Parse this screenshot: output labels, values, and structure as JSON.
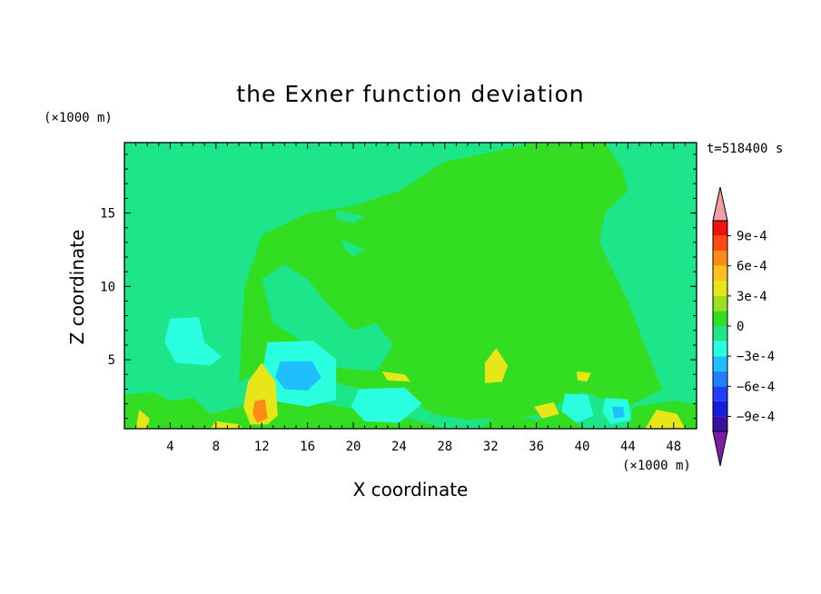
{
  "chart_data": {
    "type": "heatmap",
    "title": "the Exner function deviation",
    "xlabel": "X coordinate",
    "ylabel": "Z coordinate",
    "x_unit": "(×1000 m)",
    "y_unit": "(×1000 m)",
    "time_label": "t=518400 s",
    "xlim": [
      0,
      50
    ],
    "ylim": [
      0.3,
      19.8
    ],
    "x_ticks": [
      4,
      8,
      12,
      16,
      20,
      24,
      28,
      32,
      36,
      40,
      44,
      48
    ],
    "y_ticks": [
      5,
      10,
      15
    ],
    "colorbar": {
      "levels": [
        -0.001,
        -0.0009,
        -0.00075,
        -0.0006,
        -0.00045,
        -0.0003,
        -0.00015,
        0,
        0.00015,
        0.0003,
        0.00045,
        0.0006,
        0.00075,
        0.0009,
        0.001
      ],
      "colors": [
        "#7a1fa2",
        "#3b0fa0",
        "#1a1adf",
        "#1f3fff",
        "#1f7fff",
        "#1fbfff",
        "#2affe0",
        "#1de58a",
        "#33dd22",
        "#9be01e",
        "#e6e619",
        "#ffc21a",
        "#ff8a1a",
        "#ff4a14",
        "#ee1111",
        "#f0a0a0"
      ],
      "tick_values": [
        0.0009,
        0.0006,
        0.0003,
        0,
        -0.0003,
        -0.0006,
        -0.0009
      ],
      "tick_labels": [
        "9e-4",
        "6e-4",
        "3e-4",
        "0",
        "−3e-4",
        "−6e-4",
        "−9e-4"
      ]
    },
    "background_value": -0.0001,
    "regions": [
      {
        "value": 0.0001,
        "polygon": [
          [
            10,
            3.5
          ],
          [
            10.5,
            10
          ],
          [
            12,
            13.5
          ],
          [
            16,
            15
          ],
          [
            20,
            15.5
          ],
          [
            24,
            16.5
          ],
          [
            28,
            18.5
          ],
          [
            36,
            19.8
          ],
          [
            42,
            19.8
          ],
          [
            43.5,
            18
          ],
          [
            44,
            16.5
          ],
          [
            42,
            15
          ],
          [
            41.5,
            13
          ],
          [
            44,
            9
          ],
          [
            47,
            3
          ],
          [
            44,
            1.8
          ],
          [
            40,
            2.8
          ],
          [
            36,
            1.2
          ],
          [
            30,
            0.9
          ],
          [
            27,
            1.3
          ],
          [
            25,
            2.2
          ],
          [
            22,
            2.8
          ],
          [
            19,
            3.3
          ],
          [
            16,
            4.5
          ],
          [
            12.5,
            4.5
          ]
        ]
      },
      {
        "value": 0.0001,
        "polygon": [
          [
            0,
            0.3
          ],
          [
            0,
            2.6
          ],
          [
            2.5,
            2.8
          ],
          [
            4,
            2.2
          ],
          [
            6,
            2.4
          ],
          [
            7.5,
            1.3
          ],
          [
            10,
            1.8
          ],
          [
            12,
            2.8
          ],
          [
            15,
            2.4
          ],
          [
            19,
            1.8
          ],
          [
            22,
            1.3
          ],
          [
            25,
            1.0
          ],
          [
            28,
            0.3
          ]
        ]
      },
      {
        "value": 0.0001,
        "polygon": [
          [
            31,
            0.3
          ],
          [
            33,
            1.4
          ],
          [
            36,
            0.9
          ],
          [
            38.5,
            1.8
          ],
          [
            40,
            0.3
          ]
        ]
      },
      {
        "value": 0.0001,
        "polygon": [
          [
            44,
            0.3
          ],
          [
            44.5,
            1.8
          ],
          [
            48,
            2.2
          ],
          [
            50,
            2.0
          ],
          [
            50,
            0.3
          ]
        ]
      },
      {
        "value": -0.0001,
        "polygon": [
          [
            12,
            10.5
          ],
          [
            14,
            11.5
          ],
          [
            16,
            10.5
          ],
          [
            17.5,
            9
          ],
          [
            20,
            7
          ],
          [
            22,
            7.5
          ],
          [
            23.5,
            6
          ],
          [
            22,
            4.2
          ],
          [
            18,
            4.5
          ],
          [
            16,
            6
          ],
          [
            13,
            7.5
          ]
        ]
      },
      {
        "value": -0.0001,
        "polygon": [
          [
            18.5,
            15.2
          ],
          [
            21,
            14.8
          ],
          [
            20,
            14.3
          ],
          [
            18.5,
            14.6
          ]
        ]
      },
      {
        "value": -0.0001,
        "polygon": [
          [
            19,
            13.2
          ],
          [
            21,
            12.5
          ],
          [
            20,
            12
          ],
          [
            19.2,
            12.6
          ]
        ]
      },
      {
        "value": -0.0003,
        "polygon": [
          [
            4,
            7.8
          ],
          [
            6.5,
            7.9
          ],
          [
            7,
            6.2
          ],
          [
            8.5,
            5.2
          ],
          [
            7.5,
            4.6
          ],
          [
            4.5,
            4.8
          ],
          [
            3.5,
            6.2
          ]
        ]
      },
      {
        "value": -0.0002,
        "polygon": [
          [
            12.5,
            6.2
          ],
          [
            16.5,
            6.3
          ],
          [
            18.5,
            5
          ],
          [
            18.5,
            2.3
          ],
          [
            16,
            1.8
          ],
          [
            13,
            2.2
          ],
          [
            12,
            4
          ]
        ]
      },
      {
        "value": -0.00045,
        "polygon": [
          [
            13.6,
            4.9
          ],
          [
            16.4,
            4.9
          ],
          [
            17.2,
            3.8
          ],
          [
            16,
            2.9
          ],
          [
            14,
            3.0
          ],
          [
            13.2,
            3.8
          ]
        ]
      },
      {
        "value": -0.0002,
        "polygon": [
          [
            20.5,
            3
          ],
          [
            24.5,
            3.1
          ],
          [
            26,
            2
          ],
          [
            24,
            0.7
          ],
          [
            21,
            0.8
          ],
          [
            19.8,
            1.8
          ]
        ]
      },
      {
        "value": -0.0003,
        "polygon": [
          [
            38.5,
            2.7
          ],
          [
            40.5,
            2.6
          ],
          [
            41,
            1.2
          ],
          [
            39.5,
            0.7
          ],
          [
            38.2,
            1.5
          ]
        ]
      },
      {
        "value": -0.0003,
        "polygon": [
          [
            42,
            2.4
          ],
          [
            44,
            2.3
          ],
          [
            44.3,
            0.9
          ],
          [
            42.5,
            0.6
          ],
          [
            41.8,
            1.4
          ]
        ]
      },
      {
        "value": -0.0004,
        "polygon": [
          [
            42.6,
            1.8
          ],
          [
            43.6,
            1.8
          ],
          [
            43.7,
            1.1
          ],
          [
            42.8,
            1.0
          ]
        ]
      },
      {
        "value": 0.0004,
        "polygon": [
          [
            10.8,
            3.5
          ],
          [
            12,
            4.8
          ],
          [
            13.2,
            3.5
          ],
          [
            13.4,
            1.2
          ],
          [
            12.5,
            0.6
          ],
          [
            11,
            0.6
          ],
          [
            10.4,
            1.8
          ]
        ]
      },
      {
        "value": 0.0006,
        "polygon": [
          [
            11.4,
            2.2
          ],
          [
            12.3,
            2.3
          ],
          [
            12.5,
            1.0
          ],
          [
            11.6,
            0.7
          ],
          [
            11.2,
            1.3
          ]
        ]
      },
      {
        "value": 0.0003,
        "polygon": [
          [
            1,
            0.3
          ],
          [
            1.3,
            1.6
          ],
          [
            2.2,
            1.0
          ],
          [
            2.0,
            0.3
          ]
        ]
      },
      {
        "value": 0.0003,
        "polygon": [
          [
            7.5,
            0.3
          ],
          [
            8,
            0.8
          ],
          [
            10,
            0.6
          ],
          [
            10.3,
            0.3
          ]
        ]
      },
      {
        "value": 0.0003,
        "polygon": [
          [
            31.5,
            4.8
          ],
          [
            32.5,
            5.8
          ],
          [
            33.5,
            4.6
          ],
          [
            33,
            3.5
          ],
          [
            31.5,
            3.4
          ]
        ]
      },
      {
        "value": 0.0003,
        "polygon": [
          [
            45.5,
            0.3
          ],
          [
            46.5,
            1.6
          ],
          [
            48.3,
            1.3
          ],
          [
            49,
            0.3
          ]
        ]
      },
      {
        "value": 0.0003,
        "polygon": [
          [
            22.5,
            4.2
          ],
          [
            24.5,
            4.0
          ],
          [
            25,
            3.5
          ],
          [
            23,
            3.6
          ]
        ]
      },
      {
        "value": 0.0003,
        "polygon": [
          [
            35.8,
            1.8
          ],
          [
            37.5,
            2.1
          ],
          [
            38,
            1.3
          ],
          [
            36.5,
            1.0
          ]
        ]
      },
      {
        "value": 0.0003,
        "polygon": [
          [
            39.5,
            4.2
          ],
          [
            40.8,
            4.1
          ],
          [
            40.4,
            3.5
          ],
          [
            39.6,
            3.6
          ]
        ]
      }
    ]
  }
}
